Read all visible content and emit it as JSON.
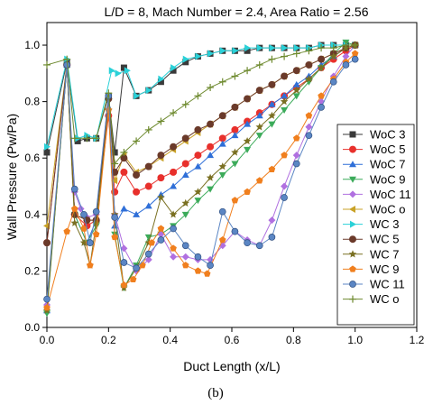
{
  "chart_data": {
    "type": "line",
    "title": "L/D = 8, Mach Number = 2.4, Area Ratio = 2.56",
    "xlabel": "Duct Length (x/L)",
    "ylabel": "Wall Pressure (Pw/Pa)",
    "caption": "(b)",
    "xlim": [
      0,
      1.2
    ],
    "ylim": [
      0,
      1.08
    ],
    "xticks": [
      "0.0",
      "0.2",
      "0.4",
      "0.6",
      "0.8",
      "1.0",
      "1.2"
    ],
    "yticks": [
      "0.0",
      "0.2",
      "0.4",
      "0.6",
      "0.8",
      "1.0"
    ],
    "legend_position": "right",
    "series": [
      {
        "name": "WoC 3",
        "color": "#3a3a3a",
        "marker": "square",
        "x": [
          0.0,
          0.065,
          0.1,
          0.13,
          0.16,
          0.2,
          0.22,
          0.25,
          0.29,
          0.33,
          0.37,
          0.41,
          0.45,
          0.49,
          0.53,
          0.57,
          0.61,
          0.65,
          0.69,
          0.73,
          0.77,
          0.81,
          0.85,
          0.89,
          0.93,
          0.97,
          1.0
        ],
        "y": [
          0.62,
          0.94,
          0.66,
          0.67,
          0.67,
          0.82,
          0.62,
          0.92,
          0.82,
          0.84,
          0.87,
          0.91,
          0.94,
          0.96,
          0.97,
          0.98,
          0.98,
          0.98,
          0.99,
          0.99,
          0.99,
          0.99,
          0.99,
          1.0,
          1.0,
          1.0,
          1.0
        ]
      },
      {
        "name": "WoC 5",
        "color": "#e8302c",
        "marker": "circle",
        "x": [
          0.0,
          0.065,
          0.09,
          0.13,
          0.16,
          0.2,
          0.22,
          0.25,
          0.29,
          0.33,
          0.37,
          0.41,
          0.45,
          0.49,
          0.53,
          0.57,
          0.61,
          0.65,
          0.69,
          0.73,
          0.77,
          0.81,
          0.85,
          0.89,
          0.93,
          0.97,
          1.0
        ],
        "y": [
          0.3,
          0.93,
          0.4,
          0.36,
          0.38,
          0.75,
          0.48,
          0.55,
          0.48,
          0.5,
          0.53,
          0.55,
          0.58,
          0.61,
          0.64,
          0.67,
          0.7,
          0.73,
          0.76,
          0.79,
          0.82,
          0.85,
          0.88,
          0.92,
          0.95,
          0.98,
          1.0
        ]
      },
      {
        "name": "WoC 7",
        "color": "#2f6fd8",
        "marker": "triangle-up",
        "x": [
          0.0,
          0.065,
          0.09,
          0.13,
          0.16,
          0.2,
          0.22,
          0.25,
          0.29,
          0.33,
          0.37,
          0.41,
          0.45,
          0.49,
          0.53,
          0.57,
          0.61,
          0.65,
          0.69,
          0.73,
          0.77,
          0.81,
          0.85,
          0.89,
          0.93,
          0.97,
          1.0
        ],
        "y": [
          0.06,
          0.93,
          0.4,
          0.3,
          0.38,
          0.78,
          0.36,
          0.42,
          0.4,
          0.43,
          0.47,
          0.5,
          0.54,
          0.57,
          0.61,
          0.65,
          0.68,
          0.72,
          0.75,
          0.79,
          0.82,
          0.86,
          0.89,
          0.93,
          0.96,
          0.99,
          1.0
        ]
      },
      {
        "name": "WoC 9",
        "color": "#3cab5a",
        "marker": "triangle-down",
        "x": [
          0.0,
          0.065,
          0.09,
          0.13,
          0.16,
          0.2,
          0.22,
          0.25,
          0.29,
          0.33,
          0.37,
          0.41,
          0.45,
          0.49,
          0.53,
          0.57,
          0.61,
          0.65,
          0.69,
          0.73,
          0.77,
          0.81,
          0.85,
          0.89,
          0.93,
          0.97,
          1.0
        ],
        "y": [
          0.05,
          0.93,
          0.4,
          0.3,
          0.36,
          0.8,
          0.33,
          0.14,
          0.22,
          0.32,
          0.33,
          0.36,
          0.4,
          0.45,
          0.49,
          0.54,
          0.58,
          0.63,
          0.68,
          0.72,
          0.77,
          0.82,
          0.87,
          0.92,
          0.97,
          1.01,
          1.0
        ]
      },
      {
        "name": "WoC 11",
        "color": "#b070e0",
        "marker": "diamond",
        "x": [
          0.0,
          0.065,
          0.09,
          0.11,
          0.13,
          0.16,
          0.2,
          0.22,
          0.25,
          0.29,
          0.33,
          0.37,
          0.41,
          0.45,
          0.49,
          0.53,
          0.57,
          0.61,
          0.65,
          0.69,
          0.73,
          0.77,
          0.81,
          0.85,
          0.89,
          0.93,
          0.97,
          1.0
        ],
        "y": [
          0.08,
          0.93,
          0.48,
          0.42,
          0.39,
          0.4,
          0.82,
          0.4,
          0.28,
          0.2,
          0.24,
          0.33,
          0.25,
          0.25,
          0.24,
          0.24,
          0.29,
          0.34,
          0.31,
          0.29,
          0.38,
          0.5,
          0.61,
          0.71,
          0.8,
          0.89,
          0.96,
          1.0
        ]
      },
      {
        "name": "WoC o",
        "color": "#c9a227",
        "marker": "triangle-left",
        "x": [
          0.0,
          0.065,
          0.09,
          0.13,
          0.16,
          0.2,
          0.22,
          0.25,
          0.29,
          0.33,
          0.37,
          0.41,
          0.45,
          0.49,
          0.53,
          0.57,
          0.61,
          0.65,
          0.69,
          0.73,
          0.77,
          0.81,
          0.85,
          0.89,
          0.93,
          0.97,
          1.0
        ],
        "y": [
          0.36,
          0.93,
          0.4,
          0.38,
          0.38,
          0.82,
          0.52,
          0.61,
          0.55,
          0.57,
          0.6,
          0.63,
          0.66,
          0.69,
          0.72,
          0.75,
          0.78,
          0.81,
          0.84,
          0.86,
          0.89,
          0.91,
          0.93,
          0.95,
          0.97,
          0.99,
          1.0
        ]
      },
      {
        "name": "WC 3",
        "color": "#2ad1d8",
        "marker": "triangle-right",
        "x": [
          0.0,
          0.065,
          0.1,
          0.13,
          0.16,
          0.21,
          0.23,
          0.26,
          0.29,
          0.33,
          0.37,
          0.41,
          0.45,
          0.49,
          0.53,
          0.57,
          0.61,
          0.65,
          0.69,
          0.73,
          0.77,
          0.81,
          0.85,
          0.89,
          0.93,
          0.97,
          1.0
        ],
        "y": [
          0.64,
          0.95,
          0.67,
          0.68,
          0.67,
          0.91,
          0.9,
          0.91,
          0.82,
          0.84,
          0.88,
          0.92,
          0.95,
          0.96,
          0.97,
          0.98,
          0.98,
          0.99,
          0.99,
          0.99,
          0.99,
          0.99,
          0.99,
          1.0,
          1.0,
          1.0,
          1.0
        ]
      },
      {
        "name": "WC 5",
        "color": "#6b3a2a",
        "marker": "circle",
        "x": [
          0.0,
          0.065,
          0.09,
          0.13,
          0.16,
          0.2,
          0.22,
          0.25,
          0.29,
          0.33,
          0.37,
          0.41,
          0.45,
          0.49,
          0.53,
          0.57,
          0.61,
          0.65,
          0.69,
          0.73,
          0.77,
          0.81,
          0.85,
          0.89,
          0.93,
          0.97,
          1.0
        ],
        "y": [
          0.3,
          0.93,
          0.4,
          0.38,
          0.38,
          0.81,
          0.55,
          0.6,
          0.54,
          0.57,
          0.61,
          0.64,
          0.67,
          0.7,
          0.72,
          0.75,
          0.78,
          0.81,
          0.84,
          0.86,
          0.89,
          0.91,
          0.93,
          0.95,
          0.97,
          0.99,
          1.0
        ]
      },
      {
        "name": "WC 7",
        "color": "#7a7022",
        "marker": "star",
        "x": [
          0.0,
          0.065,
          0.09,
          0.12,
          0.14,
          0.16,
          0.2,
          0.22,
          0.25,
          0.29,
          0.33,
          0.37,
          0.41,
          0.45,
          0.49,
          0.53,
          0.57,
          0.61,
          0.65,
          0.69,
          0.73,
          0.77,
          0.81,
          0.85,
          0.89,
          0.93,
          0.97,
          1.0
        ],
        "y": [
          0.06,
          0.93,
          0.37,
          0.3,
          0.22,
          0.37,
          0.77,
          0.4,
          0.14,
          0.21,
          0.3,
          0.46,
          0.4,
          0.44,
          0.48,
          0.53,
          0.57,
          0.62,
          0.66,
          0.71,
          0.75,
          0.8,
          0.84,
          0.88,
          0.92,
          0.96,
          0.99,
          1.0
        ]
      },
      {
        "name": "WC 9",
        "color": "#f07f1e",
        "marker": "pentagon",
        "x": [
          0.0,
          0.065,
          0.09,
          0.12,
          0.14,
          0.16,
          0.2,
          0.22,
          0.25,
          0.28,
          0.31,
          0.34,
          0.37,
          0.41,
          0.45,
          0.49,
          0.52,
          0.57,
          0.61,
          0.65,
          0.69,
          0.73,
          0.77,
          0.81,
          0.85,
          0.89,
          0.93,
          0.97,
          1.0
        ],
        "y": [
          0.07,
          0.34,
          0.42,
          0.35,
          0.22,
          0.33,
          0.77,
          0.32,
          0.15,
          0.17,
          0.22,
          0.3,
          0.35,
          0.28,
          0.22,
          0.2,
          0.19,
          0.31,
          0.45,
          0.48,
          0.52,
          0.56,
          0.61,
          0.67,
          0.75,
          0.82,
          0.88,
          0.94,
          0.97
        ]
      },
      {
        "name": "WC 11",
        "color": "#5b86c4",
        "marker": "sphere",
        "x": [
          0.0,
          0.065,
          0.09,
          0.12,
          0.14,
          0.16,
          0.2,
          0.22,
          0.25,
          0.29,
          0.33,
          0.37,
          0.41,
          0.45,
          0.49,
          0.53,
          0.57,
          0.61,
          0.65,
          0.69,
          0.73,
          0.77,
          0.81,
          0.85,
          0.89,
          0.93,
          0.97,
          1.0
        ],
        "y": [
          0.1,
          0.93,
          0.49,
          0.4,
          0.3,
          0.41,
          0.82,
          0.39,
          0.23,
          0.21,
          0.26,
          0.31,
          0.35,
          0.29,
          0.25,
          0.22,
          0.41,
          0.34,
          0.3,
          0.29,
          0.32,
          0.46,
          0.58,
          0.68,
          0.78,
          0.87,
          0.93,
          0.95
        ]
      },
      {
        "name": "WC o",
        "color": "#6e8a2f",
        "marker": "plus",
        "x": [
          0.0,
          0.065,
          0.09,
          0.13,
          0.16,
          0.2,
          0.22,
          0.25,
          0.29,
          0.33,
          0.37,
          0.41,
          0.45,
          0.49,
          0.53,
          0.57,
          0.61,
          0.65,
          0.69,
          0.73,
          0.77,
          0.81,
          0.85,
          0.89,
          0.93,
          0.97,
          1.0
        ],
        "y": [
          0.93,
          0.95,
          0.67,
          0.67,
          0.67,
          0.83,
          0.58,
          0.62,
          0.66,
          0.7,
          0.73,
          0.76,
          0.79,
          0.82,
          0.85,
          0.87,
          0.89,
          0.91,
          0.93,
          0.95,
          0.96,
          0.97,
          0.98,
          0.99,
          0.99,
          1.0,
          1.0
        ]
      }
    ]
  }
}
